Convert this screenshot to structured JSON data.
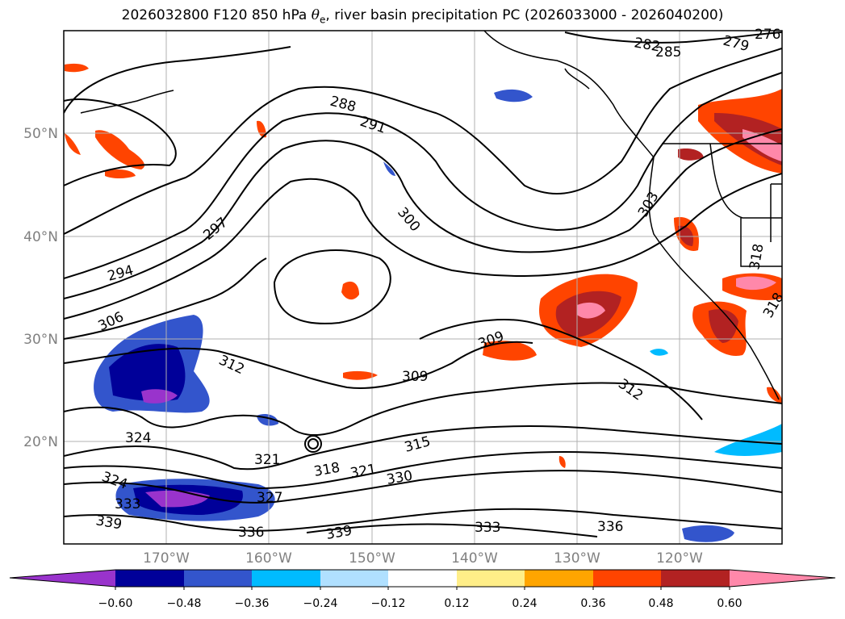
{
  "title": {
    "prefix": "2026032800 F120 850 hPa ",
    "symbol": "θ",
    "subscript": "e",
    "suffix": ", river basin precipitation PC (2026033000 - 2026040200)"
  },
  "axes": {
    "lat_labels": [
      "50°N",
      "40°N",
      "30°N",
      "20°N"
    ],
    "lon_labels": [
      "170°W",
      "160°W",
      "150°W",
      "140°W",
      "130°W",
      "120°W"
    ]
  },
  "colorbar": {
    "colors": [
      "#9933cc",
      "#000099",
      "#3355cc",
      "#00bbff",
      "#b0e0ff",
      "#ffffff",
      "#ffee88",
      "#ffa500",
      "#ff4400",
      "#b22222",
      "#ff88aa"
    ],
    "tick_labels": [
      "−0.60",
      "−0.48",
      "−0.36",
      "−0.24",
      "−0.12",
      "0.12",
      "0.24",
      "0.36",
      "0.48",
      "0.60"
    ]
  },
  "contour_labels": [
    "282",
    "285",
    "279",
    "276",
    "288",
    "291",
    "297",
    "300",
    "303",
    "294",
    "306",
    "318",
    "318",
    "309",
    "312",
    "309",
    "312",
    "324",
    "321",
    "318",
    "321",
    "315",
    "330",
    "324",
    "333",
    "327",
    "339",
    "336",
    "339",
    "333",
    "336"
  ]
}
